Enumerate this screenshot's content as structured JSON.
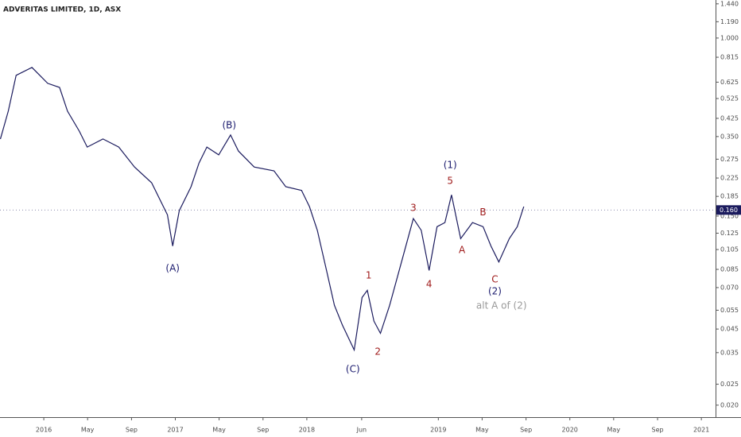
{
  "chart_data": {
    "type": "line",
    "title": "ADVERITAS LIMITED, 1D, ASX",
    "log_scale": true,
    "color": "#1b1b5e",
    "x": [
      2015.67,
      2015.73,
      2015.79,
      2015.91,
      2016.03,
      2016.12,
      2016.18,
      2016.27,
      2016.33,
      2016.45,
      2016.57,
      2016.69,
      2016.82,
      2016.94,
      2016.98,
      2017.03,
      2017.12,
      2017.18,
      2017.24,
      2017.33,
      2017.42,
      2017.48,
      2017.6,
      2017.75,
      2017.84,
      2017.96,
      2018.02,
      2018.08,
      2018.15,
      2018.21,
      2018.27,
      2018.36,
      2018.42,
      2018.46,
      2018.51,
      2018.56,
      2018.63,
      2018.72,
      2018.81,
      2018.87,
      2018.93,
      2018.99,
      2019.05,
      2019.1,
      2019.17,
      2019.26,
      2019.34,
      2019.4,
      2019.46,
      2019.54,
      2019.6,
      2019.65
    ],
    "values": [
      0.341,
      0.459,
      0.672,
      0.731,
      0.617,
      0.591,
      0.459,
      0.371,
      0.313,
      0.341,
      0.313,
      0.253,
      0.214,
      0.152,
      0.109,
      0.159,
      0.205,
      0.264,
      0.313,
      0.288,
      0.356,
      0.3,
      0.253,
      0.243,
      0.205,
      0.197,
      0.166,
      0.129,
      0.084,
      0.058,
      0.047,
      0.036,
      0.063,
      0.068,
      0.049,
      0.043,
      0.058,
      0.092,
      0.146,
      0.129,
      0.084,
      0.134,
      0.14,
      0.188,
      0.118,
      0.14,
      0.134,
      0.109,
      0.092,
      0.118,
      0.134,
      0.166
    ],
    "last_price": {
      "value": 0.16,
      "label": "0.160"
    },
    "xlim": [
      2015.667,
      2021.108
    ],
    "xticks": [
      2016,
      {
        "value": 2016.333,
        "label": "May"
      },
      {
        "value": 2016.667,
        "label": "Sep"
      },
      2017,
      {
        "value": 2017.333,
        "label": "May"
      },
      {
        "value": 2017.667,
        "label": "Sep"
      },
      2018,
      {
        "value": 2018.417,
        "label": "Jun"
      },
      2019,
      {
        "value": 2019.333,
        "label": "May"
      },
      {
        "value": 2019.667,
        "label": "Sep"
      },
      2020,
      {
        "value": 2020.333,
        "label": "May"
      },
      {
        "value": 2020.667,
        "label": "Sep"
      },
      2021
    ],
    "ylim": [
      0.0176,
      1.5
    ],
    "yticks": [
      {
        "value": 1.44,
        "label": "1.440"
      },
      {
        "value": 1.19,
        "label": "1.190"
      },
      {
        "value": 1.0,
        "label": "1.000"
      },
      {
        "value": 0.815,
        "label": "0.815"
      },
      {
        "value": 0.625,
        "label": "0.625"
      },
      {
        "value": 0.525,
        "label": "0.525"
      },
      {
        "value": 0.425,
        "label": "0.425"
      },
      {
        "value": 0.35,
        "label": "0.350"
      },
      {
        "value": 0.275,
        "label": "0.275"
      },
      {
        "value": 0.225,
        "label": "0.225"
      },
      {
        "value": 0.185,
        "label": "0.185"
      },
      {
        "value": 0.15,
        "label": "0.150"
      },
      {
        "value": 0.125,
        "label": "0.125"
      },
      {
        "value": 0.105,
        "label": "0.105"
      },
      {
        "value": 0.085,
        "label": "0.085"
      },
      {
        "value": 0.07,
        "label": "0.070"
      },
      {
        "value": 0.055,
        "label": "0.055"
      },
      {
        "value": 0.045,
        "label": "0.045"
      },
      {
        "value": 0.035,
        "label": "0.035"
      },
      {
        "value": 0.025,
        "label": "0.025"
      },
      {
        "value": 0.02,
        "label": "0.020"
      }
    ],
    "annotations": [
      {
        "text": "(A)",
        "x": 2016.98,
        "y": 0.0857,
        "color": "#1b1b6e"
      },
      {
        "text": "(B)",
        "x": 2017.41,
        "y": 0.394,
        "color": "#1b1b6e"
      },
      {
        "text": "(C)",
        "x": 2018.35,
        "y": 0.0292,
        "color": "#1b1b6e"
      },
      {
        "text": "1",
        "x": 2018.47,
        "y": 0.0794,
        "color": "#a01c1c"
      },
      {
        "text": "2",
        "x": 2018.54,
        "y": 0.0352,
        "color": "#a01c1c"
      },
      {
        "text": "3",
        "x": 2018.81,
        "y": 0.163,
        "color": "#a01c1c"
      },
      {
        "text": "4",
        "x": 2018.93,
        "y": 0.0723,
        "color": "#a01c1c"
      },
      {
        "text": "(1)",
        "x": 2019.09,
        "y": 0.258,
        "color": "#1b1b6e"
      },
      {
        "text": "5",
        "x": 2019.09,
        "y": 0.218,
        "color": "#a01c1c"
      },
      {
        "text": "A",
        "x": 2019.18,
        "y": 0.104,
        "color": "#a01c1c"
      },
      {
        "text": "B",
        "x": 2019.34,
        "y": 0.156,
        "color": "#a01c1c"
      },
      {
        "text": "C",
        "x": 2019.43,
        "y": 0.0761,
        "color": "#a01c1c"
      },
      {
        "text": "(2)",
        "x": 2019.43,
        "y": 0.067,
        "color": "#1b1b6e"
      },
      {
        "text": "alt A of (2)",
        "x": 2019.48,
        "y": 0.0575,
        "color": "#9a9a9a"
      }
    ]
  }
}
